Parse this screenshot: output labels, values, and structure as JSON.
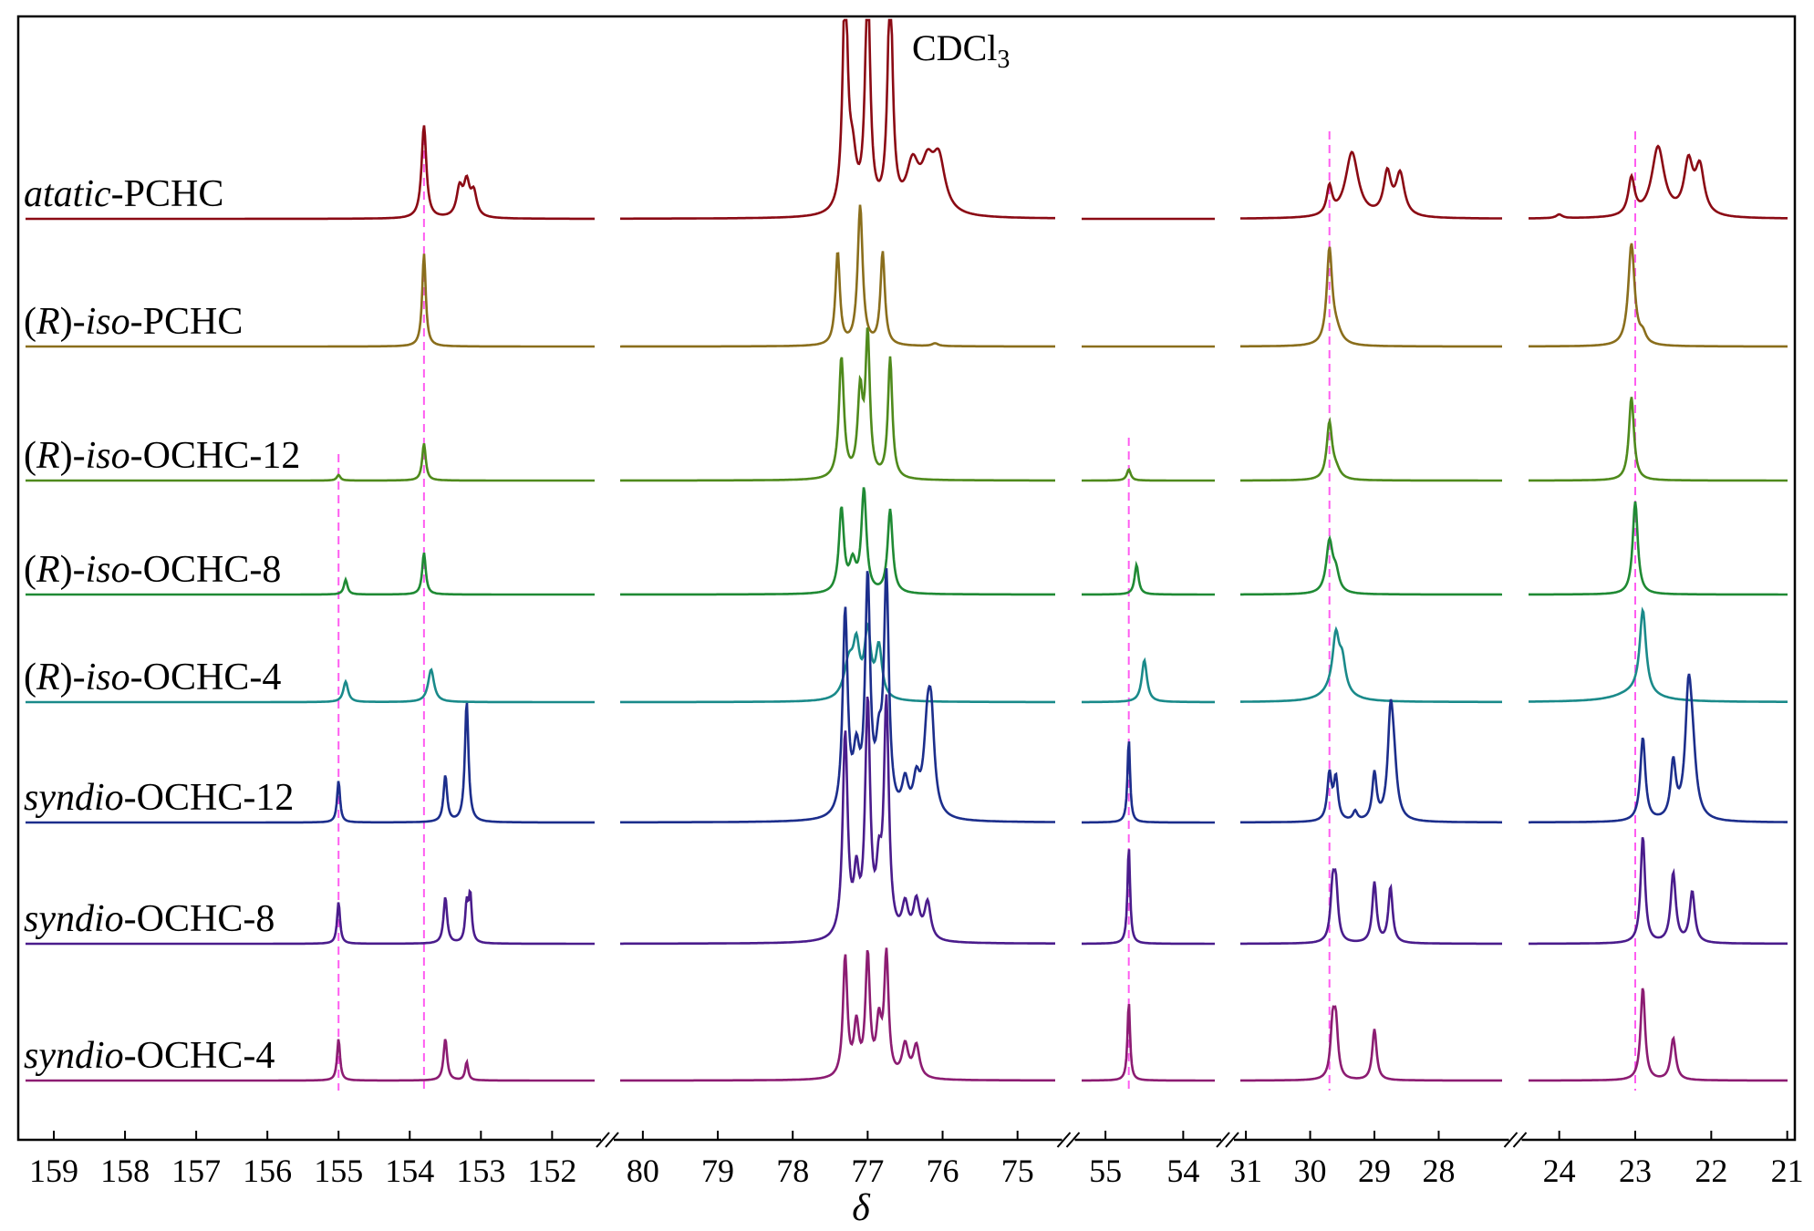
{
  "chart_data": {
    "type": "line",
    "title": "",
    "xlabel": "δ",
    "ylabel": "",
    "x_reversed": true,
    "grid": false,
    "legend": "series labels placed left of each trace",
    "axis_segments": [
      {
        "from": 159.5,
        "to": 151.3,
        "ticks": [
          159,
          158,
          157,
          156,
          155,
          154,
          153,
          152
        ]
      },
      {
        "from": 80.4,
        "to": 74.4,
        "ticks": [
          80,
          79,
          78,
          77,
          76,
          75
        ]
      },
      {
        "from": 55.4,
        "to": 53.5,
        "ticks": [
          55,
          54
        ]
      },
      {
        "from": 31.2,
        "to": 26.9,
        "ticks": [
          31,
          30,
          29,
          28
        ]
      },
      {
        "from": 24.5,
        "to": 20.9,
        "ticks": [
          24,
          23,
          22,
          21
        ]
      }
    ],
    "reference_lines_ppm": [
      155.0,
      153.8,
      54.7,
      29.7,
      23.0
    ],
    "annotations": [
      {
        "text": "CDCl",
        "sub": "3",
        "x_ppm": 76.5
      }
    ],
    "series": [
      {
        "name_parts": [
          {
            "t": "atatic",
            "i": true
          },
          {
            "t": "-PCHC",
            "i": false
          }
        ],
        "color": "#8b0a14",
        "peaks": [
          [
            153.8,
            1.0,
            0.04
          ],
          [
            153.3,
            0.3,
            0.05
          ],
          [
            153.2,
            0.35,
            0.05
          ],
          [
            153.1,
            0.25,
            0.05
          ],
          [
            77.3,
            2.5,
            0.04
          ],
          [
            77.2,
            0.5,
            0.06
          ],
          [
            77.0,
            2.5,
            0.04
          ],
          [
            76.7,
            2.5,
            0.04
          ],
          [
            76.4,
            0.5,
            0.1
          ],
          [
            76.2,
            0.45,
            0.1
          ],
          [
            76.05,
            0.55,
            0.1
          ],
          [
            29.7,
            0.3,
            0.05
          ],
          [
            29.35,
            0.7,
            0.12
          ],
          [
            28.8,
            0.45,
            0.07
          ],
          [
            28.6,
            0.45,
            0.08
          ],
          [
            24.0,
            0.04,
            0.05
          ],
          [
            23.05,
            0.4,
            0.05
          ],
          [
            22.7,
            0.75,
            0.1
          ],
          [
            22.3,
            0.55,
            0.07
          ],
          [
            22.15,
            0.5,
            0.07
          ]
        ]
      },
      {
        "name_parts": [
          {
            "t": "(",
            "i": false
          },
          {
            "t": "R",
            "i": true
          },
          {
            "t": ")-",
            "i": false
          },
          {
            "t": "iso",
            "i": true
          },
          {
            "t": "-PCHC",
            "i": false
          }
        ],
        "color": "#8a6e1c",
        "peaks": [
          [
            153.8,
            1.0,
            0.03
          ],
          [
            77.4,
            1.0,
            0.035
          ],
          [
            77.1,
            1.5,
            0.04
          ],
          [
            76.8,
            1.0,
            0.035
          ],
          [
            76.1,
            0.03,
            0.05
          ],
          [
            29.7,
            1.0,
            0.05
          ],
          [
            29.6,
            0.15,
            0.1
          ],
          [
            23.05,
            1.1,
            0.05
          ],
          [
            22.9,
            0.1,
            0.05
          ]
        ]
      },
      {
        "name_parts": [
          {
            "t": "(",
            "i": false
          },
          {
            "t": "R",
            "i": true
          },
          {
            "t": ")-",
            "i": false
          },
          {
            "t": "iso",
            "i": true
          },
          {
            "t": "-OCHC-12",
            "i": false
          }
        ],
        "color": "#4f8a1c",
        "peaks": [
          [
            155.0,
            0.06,
            0.03
          ],
          [
            153.8,
            0.4,
            0.03
          ],
          [
            77.35,
            1.3,
            0.04
          ],
          [
            77.1,
            0.9,
            0.04
          ],
          [
            77.0,
            1.5,
            0.035
          ],
          [
            76.7,
            1.3,
            0.035
          ],
          [
            54.7,
            0.12,
            0.03
          ],
          [
            29.7,
            0.6,
            0.05
          ],
          [
            29.6,
            0.1,
            0.08
          ],
          [
            23.05,
            0.9,
            0.04
          ]
        ]
      },
      {
        "name_parts": [
          {
            "t": "(",
            "i": false
          },
          {
            "t": "R",
            "i": true
          },
          {
            "t": ")-",
            "i": false
          },
          {
            "t": "iso",
            "i": true
          },
          {
            "t": "-OCHC-8",
            "i": false
          }
        ],
        "color": "#1f8a34",
        "peaks": [
          [
            154.9,
            0.16,
            0.03
          ],
          [
            153.8,
            0.45,
            0.03
          ],
          [
            77.35,
            0.9,
            0.04
          ],
          [
            77.2,
            0.3,
            0.05
          ],
          [
            77.05,
            1.1,
            0.04
          ],
          [
            76.7,
            0.9,
            0.04
          ],
          [
            54.6,
            0.32,
            0.03
          ],
          [
            29.7,
            0.55,
            0.06
          ],
          [
            29.6,
            0.2,
            0.06
          ],
          [
            23.0,
            1.0,
            0.04
          ]
        ]
      },
      {
        "name_parts": [
          {
            "t": "(",
            "i": false
          },
          {
            "t": "R",
            "i": true
          },
          {
            "t": ")-",
            "i": false
          },
          {
            "t": "iso",
            "i": true
          },
          {
            "t": "-OCHC-4",
            "i": false
          }
        ],
        "color": "#1a8a8a",
        "peaks": [
          [
            154.9,
            0.22,
            0.04
          ],
          [
            153.7,
            0.35,
            0.05
          ],
          [
            77.25,
            0.4,
            0.08
          ],
          [
            77.15,
            0.5,
            0.05
          ],
          [
            77.0,
            0.7,
            0.05
          ],
          [
            76.85,
            0.55,
            0.05
          ],
          [
            54.5,
            0.45,
            0.04
          ],
          [
            29.6,
            0.55,
            0.06
          ],
          [
            29.5,
            0.3,
            0.06
          ],
          [
            29.6,
            0.15,
            0.2
          ],
          [
            22.9,
            0.9,
            0.05
          ],
          [
            23.0,
            0.1,
            0.3
          ]
        ]
      },
      {
        "name_parts": [
          {
            "t": "syndio",
            "i": true
          },
          {
            "t": "-OCHC-12",
            "i": false
          }
        ],
        "color": "#1c2e8c",
        "peaks": [
          [
            155.0,
            0.45,
            0.025
          ],
          [
            153.5,
            0.5,
            0.03
          ],
          [
            153.2,
            1.3,
            0.03
          ],
          [
            77.3,
            2.2,
            0.04
          ],
          [
            77.15,
            0.6,
            0.05
          ],
          [
            77.0,
            2.5,
            0.04
          ],
          [
            76.85,
            0.6,
            0.05
          ],
          [
            76.75,
            2.5,
            0.04
          ],
          [
            76.5,
            0.35,
            0.05
          ],
          [
            76.35,
            0.35,
            0.05
          ],
          [
            76.2,
            0.9,
            0.06
          ],
          [
            76.15,
            0.8,
            0.05
          ],
          [
            54.7,
            0.9,
            0.02
          ],
          [
            29.7,
            0.5,
            0.04
          ],
          [
            29.6,
            0.45,
            0.04
          ],
          [
            29.3,
            0.1,
            0.04
          ],
          [
            29.0,
            0.5,
            0.04
          ],
          [
            28.75,
            1.0,
            0.05
          ],
          [
            28.7,
            0.5,
            0.06
          ],
          [
            22.9,
            0.9,
            0.04
          ],
          [
            22.5,
            0.6,
            0.04
          ],
          [
            22.3,
            1.2,
            0.05
          ],
          [
            22.25,
            0.6,
            0.06
          ]
        ]
      },
      {
        "name_parts": [
          {
            "t": "syndio",
            "i": true
          },
          {
            "t": "-OCHC-8",
            "i": false
          }
        ],
        "color": "#4a1c8c",
        "peaks": [
          [
            155.0,
            0.45,
            0.025
          ],
          [
            153.5,
            0.5,
            0.03
          ],
          [
            153.2,
            0.4,
            0.025
          ],
          [
            153.15,
            0.5,
            0.025
          ],
          [
            77.3,
            2.2,
            0.04
          ],
          [
            77.15,
            0.6,
            0.04
          ],
          [
            77.0,
            2.5,
            0.04
          ],
          [
            76.85,
            0.6,
            0.04
          ],
          [
            76.75,
            2.5,
            0.04
          ],
          [
            76.5,
            0.35,
            0.05
          ],
          [
            76.35,
            0.4,
            0.05
          ],
          [
            76.2,
            0.4,
            0.05
          ],
          [
            54.7,
            1.05,
            0.02
          ],
          [
            29.65,
            0.55,
            0.04
          ],
          [
            29.6,
            0.55,
            0.04
          ],
          [
            29.0,
            0.65,
            0.04
          ],
          [
            28.75,
            0.6,
            0.04
          ],
          [
            22.9,
            1.15,
            0.035
          ],
          [
            22.5,
            0.75,
            0.04
          ],
          [
            22.25,
            0.55,
            0.04
          ]
        ]
      },
      {
        "name_parts": [
          {
            "t": "syndio",
            "i": true
          },
          {
            "t": "-OCHC-4",
            "i": false
          }
        ],
        "color": "#8c1c72",
        "peaks": [
          [
            155.0,
            0.45,
            0.025
          ],
          [
            153.5,
            0.45,
            0.03
          ],
          [
            153.2,
            0.2,
            0.025
          ],
          [
            77.3,
            1.3,
            0.035
          ],
          [
            77.15,
            0.55,
            0.04
          ],
          [
            77.0,
            1.3,
            0.035
          ],
          [
            76.85,
            0.55,
            0.04
          ],
          [
            76.75,
            1.3,
            0.035
          ],
          [
            76.5,
            0.35,
            0.05
          ],
          [
            76.35,
            0.35,
            0.05
          ],
          [
            54.7,
            0.85,
            0.02
          ],
          [
            29.65,
            0.55,
            0.04
          ],
          [
            29.6,
            0.55,
            0.04
          ],
          [
            29.0,
            0.55,
            0.04
          ],
          [
            22.9,
            1.0,
            0.035
          ],
          [
            22.5,
            0.45,
            0.04
          ]
        ]
      }
    ]
  }
}
